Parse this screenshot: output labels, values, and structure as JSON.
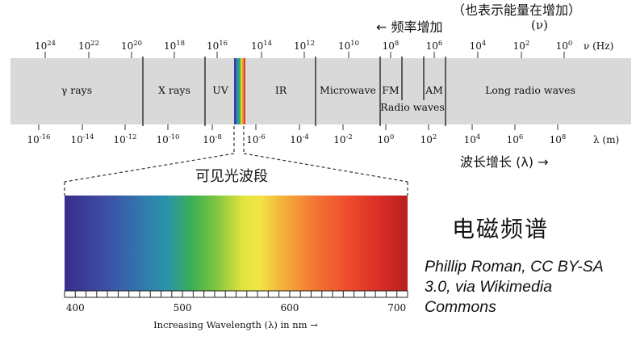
{
  "header": {
    "energy_note": "（也表示能量在增加）",
    "nu_symbol": "(ν)",
    "freq_increase": "← 频率增加",
    "freq_axis_label": "ν (Hz)"
  },
  "frequency_ticks": [
    {
      "base": "10",
      "exp": "24"
    },
    {
      "base": "10",
      "exp": "22"
    },
    {
      "base": "10",
      "exp": "20"
    },
    {
      "base": "10",
      "exp": "18"
    },
    {
      "base": "10",
      "exp": "16"
    },
    {
      "base": "10",
      "exp": "14"
    },
    {
      "base": "10",
      "exp": "12"
    },
    {
      "base": "10",
      "exp": "10"
    },
    {
      "base": "10",
      "exp": "8"
    },
    {
      "base": "10",
      "exp": "6"
    },
    {
      "base": "10",
      "exp": "4"
    },
    {
      "base": "10",
      "exp": "2"
    },
    {
      "base": "10",
      "exp": "0"
    }
  ],
  "wavelength_ticks": [
    {
      "base": "10",
      "exp": "-16"
    },
    {
      "base": "10",
      "exp": "-14"
    },
    {
      "base": "10",
      "exp": "-12"
    },
    {
      "base": "10",
      "exp": "-10"
    },
    {
      "base": "10",
      "exp": "-8"
    },
    {
      "base": "10",
      "exp": "-6"
    },
    {
      "base": "10",
      "exp": "-4"
    },
    {
      "base": "10",
      "exp": "-2"
    },
    {
      "base": "10",
      "exp": "0"
    },
    {
      "base": "10",
      "exp": "2"
    },
    {
      "base": "10",
      "exp": "4"
    },
    {
      "base": "10",
      "exp": "6"
    },
    {
      "base": "10",
      "exp": "8"
    }
  ],
  "wavelength_axis_label": "λ (m)",
  "bands": {
    "gamma": "γ rays",
    "xray": "X rays",
    "uv": "UV",
    "ir": "IR",
    "microwave": "Microwave",
    "fm": "FM",
    "am": "AM",
    "radio": "Radio waves",
    "long_radio": "Long radio waves"
  },
  "wavelength_increase": "波长增长 (λ) →",
  "visible_label": "可见光波段",
  "visible_ticks": [
    "400",
    "500",
    "600",
    "700"
  ],
  "visible_axis_label": "Increasing Wavelength (λ) in nm →",
  "title": "电磁频谱",
  "credit": "Phillip Roman, CC BY-SA 3.0, via Wikimedia Commons",
  "colors": {
    "band_fill": "#d9d9d9",
    "divider": "#333333",
    "text": "#111111"
  }
}
